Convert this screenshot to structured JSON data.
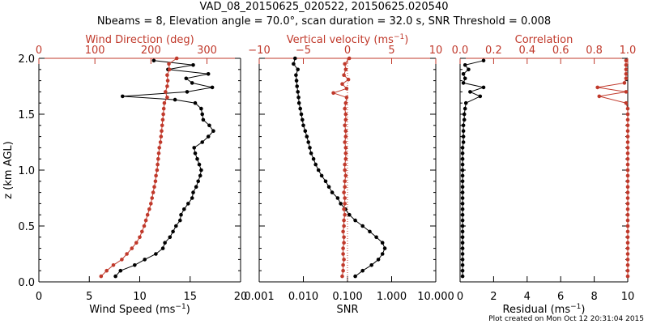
{
  "title_line1": "VAD_08_20150625_020522, 20150625.020540",
  "title_line2": "Nbeams = 8, Elevation angle = 70.0°, scan duration = 32.0 s, SNR Threshold = 0.008",
  "footer": "Plot created on Mon Oct 12 20:31:04 2015",
  "colors": {
    "black": "#000000",
    "red": "#c0392b"
  },
  "chart_data": [
    {
      "type": "line",
      "panel": "left",
      "ylabel": "z (km AGL)",
      "ylim": [
        0,
        2.0
      ],
      "yticks": [
        "0.0",
        "0.5",
        "1.0",
        "1.5",
        "2.0"
      ],
      "bottom_axis": {
        "label": "Wind Speed (ms⁻¹)",
        "range": [
          0,
          20
        ],
        "ticks": [
          "0",
          "5",
          "10",
          "15",
          "20"
        ]
      },
      "top_axis": {
        "label": "Wind Direction (deg)",
        "range": [
          0,
          360
        ],
        "ticks": [
          "0",
          "100",
          "200",
          "300"
        ]
      },
      "series": [
        {
          "axis": "bottom",
          "color": "black",
          "z": [
            0.05,
            0.1,
            0.15,
            0.2,
            0.25,
            0.3,
            0.35,
            0.4,
            0.45,
            0.5,
            0.55,
            0.6,
            0.65,
            0.7,
            0.75,
            0.8,
            0.85,
            0.9,
            0.95,
            1.0,
            1.05,
            1.1,
            1.15,
            1.2,
            1.25,
            1.3,
            1.35,
            1.4,
            1.45,
            1.5,
            1.55,
            1.6,
            1.63,
            1.66,
            1.7,
            1.74,
            1.78,
            1.82,
            1.86,
            1.9,
            1.94,
            1.98
          ],
          "value": [
            7.6,
            8.1,
            9.5,
            10.5,
            11.6,
            12.3,
            12.5,
            13.0,
            13.3,
            13.6,
            14.0,
            14.1,
            14.4,
            14.8,
            15.2,
            15.3,
            15.6,
            15.8,
            16.0,
            16.1,
            15.9,
            15.7,
            15.5,
            15.4,
            16.2,
            16.8,
            17.3,
            16.9,
            16.3,
            16.2,
            16.1,
            15.5,
            13.5,
            8.3,
            14.7,
            17.2,
            15.2,
            14.6,
            16.8,
            12.8,
            15.3,
            11.4
          ]
        },
        {
          "axis": "top",
          "color": "red",
          "z": [
            0.05,
            0.1,
            0.15,
            0.2,
            0.25,
            0.3,
            0.35,
            0.4,
            0.45,
            0.5,
            0.55,
            0.6,
            0.65,
            0.7,
            0.75,
            0.8,
            0.85,
            0.9,
            0.95,
            1.0,
            1.05,
            1.1,
            1.15,
            1.2,
            1.25,
            1.3,
            1.35,
            1.4,
            1.45,
            1.5,
            1.55,
            1.6,
            1.65,
            1.7,
            1.75,
            1.8,
            1.85,
            1.9,
            1.95,
            2.0
          ],
          "value": [
            111,
            121,
            133,
            148,
            157,
            166,
            174,
            180,
            184,
            188,
            191,
            194,
            197,
            200,
            202,
            204,
            206,
            208,
            209,
            211,
            212,
            213,
            214,
            215,
            217,
            218,
            219,
            220,
            221,
            222,
            223,
            224,
            229,
            226,
            229,
            230,
            229,
            233,
            232,
            246
          ]
        }
      ]
    },
    {
      "type": "line",
      "panel": "middle",
      "bottom_axis": {
        "label": "SNR",
        "scale": "log",
        "range": [
          0.001,
          10
        ],
        "ticks": [
          "0.001",
          "0.010",
          "0.100",
          "1.000",
          "10.000"
        ]
      },
      "top_axis": {
        "label": "Vertical velocity (ms⁻¹)",
        "range": [
          -10,
          10
        ],
        "ticks": [
          "−10",
          "−5",
          "0",
          "5",
          "10"
        ]
      },
      "zero_line": {
        "axis": "top",
        "value": 0,
        "style": "dotted"
      },
      "series": [
        {
          "axis": "bottom",
          "color": "black",
          "z": [
            0.05,
            0.1,
            0.15,
            0.2,
            0.25,
            0.3,
            0.35,
            0.4,
            0.45,
            0.5,
            0.55,
            0.6,
            0.65,
            0.7,
            0.75,
            0.8,
            0.85,
            0.9,
            0.95,
            1.0,
            1.05,
            1.1,
            1.15,
            1.2,
            1.25,
            1.3,
            1.35,
            1.4,
            1.45,
            1.5,
            1.55,
            1.6,
            1.65,
            1.7,
            1.75,
            1.8,
            1.85,
            1.9,
            1.95,
            2.0
          ],
          "value": [
            0.15,
            0.22,
            0.35,
            0.5,
            0.62,
            0.7,
            0.62,
            0.45,
            0.32,
            0.22,
            0.15,
            0.11,
            0.09,
            0.07,
            0.06,
            0.045,
            0.038,
            0.032,
            0.026,
            0.022,
            0.019,
            0.017,
            0.015,
            0.014,
            0.013,
            0.012,
            0.011,
            0.01,
            0.0095,
            0.009,
            0.0085,
            0.008,
            0.0078,
            0.0075,
            0.0072,
            0.007,
            0.0068,
            0.0075,
            0.006,
            0.0065
          ]
        },
        {
          "axis": "top",
          "color": "red",
          "z": [
            0.05,
            0.1,
            0.15,
            0.2,
            0.25,
            0.3,
            0.35,
            0.4,
            0.45,
            0.5,
            0.55,
            0.6,
            0.65,
            0.7,
            0.75,
            0.8,
            0.85,
            0.9,
            0.95,
            1.0,
            1.05,
            1.1,
            1.15,
            1.2,
            1.25,
            1.3,
            1.35,
            1.4,
            1.45,
            1.5,
            1.55,
            1.6,
            1.65,
            1.69,
            1.73,
            1.77,
            1.81,
            1.85,
            1.9,
            1.95,
            2.0
          ],
          "value": [
            -0.6,
            -0.5,
            -0.5,
            -0.4,
            -0.5,
            -0.5,
            -0.4,
            -0.4,
            -0.5,
            -0.4,
            -0.4,
            -0.3,
            -0.4,
            -0.3,
            -0.3,
            -0.4,
            -0.3,
            -0.3,
            -0.2,
            -0.3,
            -0.3,
            -0.2,
            -0.2,
            -0.2,
            -0.3,
            -0.2,
            -0.2,
            -0.3,
            -0.2,
            -0.2,
            -0.3,
            -0.2,
            -0.1,
            -1.6,
            -0.1,
            -0.6,
            0.1,
            -0.4,
            -0.2,
            -0.3,
            0.2
          ]
        }
      ]
    },
    {
      "type": "line",
      "panel": "right",
      "bottom_axis": {
        "label": "Residual (ms⁻¹)",
        "range": [
          0,
          10
        ],
        "ticks": [
          "0",
          "2",
          "4",
          "6",
          "8",
          "10"
        ]
      },
      "top_axis": {
        "label": "Correlation",
        "range": [
          0,
          1.0
        ],
        "ticks": [
          "0.0",
          "0.2",
          "0.4",
          "0.6",
          "0.8",
          "1.0"
        ]
      },
      "series": [
        {
          "axis": "bottom",
          "color": "black",
          "z": [
            0.05,
            0.1,
            0.15,
            0.2,
            0.25,
            0.3,
            0.35,
            0.4,
            0.45,
            0.5,
            0.55,
            0.6,
            0.65,
            0.7,
            0.75,
            0.8,
            0.85,
            0.9,
            0.95,
            1.0,
            1.05,
            1.1,
            1.15,
            1.2,
            1.25,
            1.3,
            1.35,
            1.4,
            1.45,
            1.5,
            1.55,
            1.6,
            1.66,
            1.7,
            1.74,
            1.78,
            1.82,
            1.86,
            1.9,
            1.94,
            1.98
          ],
          "value": [
            0.15,
            0.15,
            0.15,
            0.15,
            0.15,
            0.15,
            0.15,
            0.15,
            0.15,
            0.15,
            0.15,
            0.15,
            0.15,
            0.15,
            0.15,
            0.15,
            0.15,
            0.15,
            0.15,
            0.15,
            0.15,
            0.15,
            0.15,
            0.15,
            0.2,
            0.2,
            0.2,
            0.2,
            0.25,
            0.25,
            0.3,
            0.35,
            1.2,
            0.6,
            1.4,
            0.2,
            0.3,
            0.2,
            0.5,
            0.3,
            1.4
          ]
        },
        {
          "axis": "top",
          "color": "red",
          "z": [
            0.05,
            0.1,
            0.15,
            0.2,
            0.25,
            0.3,
            0.35,
            0.4,
            0.45,
            0.5,
            0.55,
            0.6,
            0.65,
            0.7,
            0.75,
            0.8,
            0.85,
            0.9,
            0.95,
            1.0,
            1.05,
            1.1,
            1.15,
            1.2,
            1.25,
            1.3,
            1.35,
            1.4,
            1.45,
            1.5,
            1.55,
            1.6,
            1.66,
            1.7,
            1.74,
            1.78,
            1.82,
            1.86,
            1.9,
            1.94,
            1.98
          ],
          "value": [
            1.0,
            1.0,
            1.0,
            1.0,
            1.0,
            1.0,
            1.0,
            1.0,
            1.0,
            1.0,
            1.0,
            1.0,
            1.0,
            1.0,
            1.0,
            1.0,
            1.0,
            1.0,
            1.0,
            1.0,
            1.0,
            1.0,
            1.0,
            1.0,
            1.0,
            1.0,
            1.0,
            1.0,
            1.0,
            1.0,
            1.0,
            0.99,
            0.83,
            0.99,
            0.82,
            0.98,
            0.99,
            0.99,
            0.99,
            0.99,
            0.99
          ]
        }
      ]
    }
  ]
}
